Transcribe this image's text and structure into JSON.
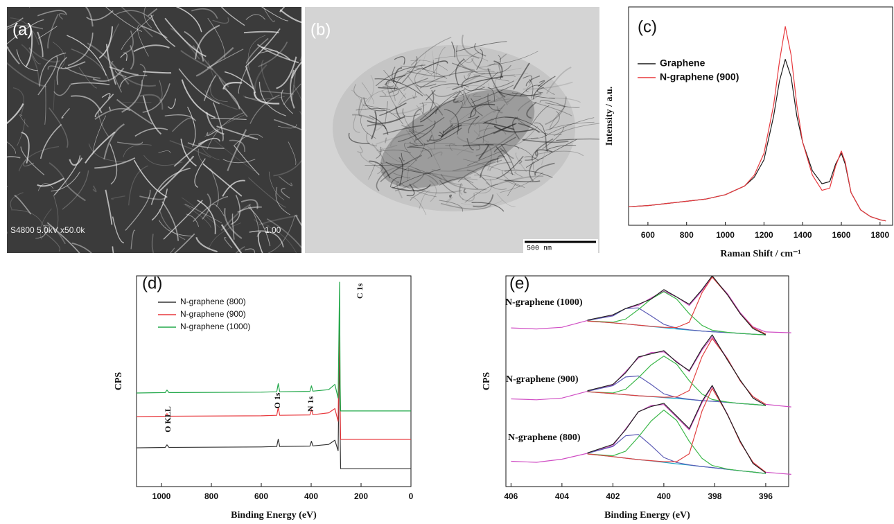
{
  "images": [
    {
      "label": "(a)",
      "caption": "S4800 5.0kV x50.0k",
      "scale": "1.00"
    },
    {
      "label": "(b)",
      "scale": "500 nm"
    }
  ],
  "chart_data": [
    {
      "type": "line",
      "label": "(c)",
      "y_label": "Intensity / a.u.",
      "x_label": "Raman Shift / cm⁻¹",
      "x": [
        500,
        600,
        700,
        800,
        900,
        1000,
        1100,
        1150,
        1200,
        1250,
        1280,
        1310,
        1340,
        1370,
        1400,
        1450,
        1500,
        1540,
        1570,
        1600,
        1620,
        1650,
        1700,
        1750,
        1800,
        1830
      ],
      "series": [
        {
          "name": "Graphene",
          "color": "#1a1a1a",
          "values": [
            8.5,
            9,
            10,
            11,
            12,
            14,
            18,
            22,
            30,
            50,
            66,
            76,
            68,
            50,
            38,
            25,
            19,
            20,
            28,
            33,
            28,
            15,
            7,
            4,
            2.5,
            2
          ]
        },
        {
          "name": "N-graphene (900)",
          "color": "#e8383d",
          "values": [
            8.5,
            9,
            10,
            11,
            12,
            14,
            18,
            23,
            33,
            55,
            75,
            91,
            78,
            55,
            38,
            23,
            16,
            17,
            27,
            34,
            29,
            15,
            7,
            4,
            2.5,
            2
          ]
        }
      ],
      "xlim": [
        500,
        1865
      ],
      "ylim": [
        0,
        100
      ],
      "xticks": [
        600,
        800,
        1000,
        1200,
        1400,
        1600,
        1800
      ]
    },
    {
      "type": "line",
      "label": "(d)",
      "y_label": "CPS",
      "x_label": "Binding Energy (eV)",
      "x": [
        1100,
        985,
        978,
        970,
        600,
        538,
        532,
        526,
        405,
        399,
        393,
        330,
        305,
        292,
        286,
        284,
        282,
        0
      ],
      "series": [
        {
          "name": "N-graphene (800)",
          "color": "#333333",
          "values": [
            18.4,
            18.6,
            19.8,
            18.6,
            18.8,
            19.0,
            22.5,
            19.0,
            19.2,
            21.5,
            19.3,
            20,
            22,
            17,
            70,
            25,
            8.5,
            8.5
          ]
        },
        {
          "name": "N-graphene (900)",
          "color": "#e8383d",
          "values": [
            33.2,
            33.4,
            34.6,
            33.4,
            33.6,
            33.8,
            37.5,
            33.8,
            34,
            36.5,
            34.1,
            35,
            37,
            31,
            85,
            38,
            22.4,
            22.4
          ]
        },
        {
          "name": "N-graphene (1000)",
          "color": "#22a84a",
          "values": [
            44.4,
            44.6,
            45.8,
            44.6,
            44.8,
            45.0,
            48.8,
            45.0,
            45.2,
            47.8,
            45.3,
            46,
            48.5,
            42,
            97,
            49,
            35.9,
            35.9
          ]
        }
      ],
      "annotations": [
        "O KLL",
        "O 1s",
        "N 1s",
        "C 1s"
      ],
      "xlim": [
        1100,
        0
      ],
      "ylim": [
        0,
        100
      ],
      "xticks": [
        1000,
        800,
        600,
        400,
        200,
        0
      ]
    },
    {
      "type": "line",
      "label": "(e)",
      "y_label": "CPS",
      "x_label": "Binding Energy (eV)",
      "x": [
        406,
        405,
        404,
        403,
        402,
        401.5,
        401,
        400.5,
        400,
        399.5,
        399,
        398.5,
        398.1,
        397.5,
        397,
        396.5,
        396,
        395
      ],
      "groups": [
        {
          "label": "N-graphene (1000)",
          "series": [
            {
              "color": "#d04ec4",
              "values": [
                75.3,
                74.8,
                75.6,
                78.8,
                81.2,
                84.5,
                86,
                89.5,
                92.8,
                90,
                86,
                93,
                99.4,
                91.5,
                82.5,
                75.8,
                73.4,
                73.0
              ]
            },
            {
              "color": "#1aa9c9",
              "values": [
                null,
                null,
                null,
                78.6,
                77.7,
                77.2,
                76.6,
                76,
                75.4,
                74.8,
                74.3,
                73.8,
                73.5,
                73.1,
                72.7,
                72.3,
                72,
                null
              ]
            },
            {
              "color": "#5b5bb5",
              "values": [
                null,
                null,
                null,
                78.8,
                81,
                84.5,
                84.8,
                81,
                77,
                75.2,
                74.4,
                73.8,
                73.5,
                73.1,
                72.7,
                72.3,
                72,
                null
              ]
            },
            {
              "color": "#3cb84a",
              "values": [
                null,
                null,
                null,
                78.6,
                78,
                79.5,
                84,
                89,
                92.5,
                89,
                82,
                76.5,
                74.2,
                73.2,
                72.7,
                72.3,
                72,
                null
              ]
            },
            {
              "color": "#e04040",
              "values": [
                null,
                null,
                null,
                78.6,
                77.7,
                77.2,
                76.6,
                76.1,
                75.6,
                75.5,
                78,
                92,
                99.4,
                91,
                82,
                75.5,
                72.4,
                null
              ]
            },
            {
              "color": "#222222",
              "values": [
                null,
                null,
                null,
                79,
                81.5,
                84.5,
                86.5,
                89,
                93.5,
                90,
                86.5,
                93.5,
                100,
                91,
                82,
                75,
                72,
                null
              ]
            }
          ]
        },
        {
          "label": "N-graphene (900)",
          "series": [
            {
              "color": "#d04ec4",
              "values": [
                41.6,
                41.2,
                42,
                45.2,
                48.2,
                54.6,
                61,
                63.6,
                63.9,
                59.4,
                54.6,
                64.8,
                71.1,
                60.7,
                50.1,
                42.7,
                39,
                37.8
              ]
            },
            {
              "color": "#1aa9c9",
              "values": [
                null,
                null,
                null,
                45,
                44.1,
                43.6,
                43.1,
                42.7,
                42.2,
                41.8,
                41.3,
                40.8,
                40.5,
                40,
                39.4,
                39,
                38.5,
                null
              ]
            },
            {
              "color": "#5b5bb5",
              "values": [
                null,
                null,
                null,
                45.2,
                47.9,
                52,
                52.5,
                48.5,
                44,
                42.3,
                41.4,
                40.8,
                40.5,
                40,
                39.4,
                39,
                38.5,
                null
              ]
            },
            {
              "color": "#3cb84a",
              "values": [
                null,
                null,
                null,
                45,
                44.4,
                46.2,
                51.6,
                57.7,
                61.9,
                58.1,
                50.2,
                43.9,
                41.3,
                40.1,
                39.4,
                39,
                38.5,
                null
              ]
            },
            {
              "color": "#e04040",
              "values": [
                null,
                null,
                null,
                45,
                44.1,
                43.6,
                43.1,
                42.8,
                42.4,
                42.6,
                45.6,
                61.7,
                70.3,
                60.6,
                50.1,
                42.7,
                39,
                null
              ]
            },
            {
              "color": "#222222",
              "values": [
                null,
                null,
                null,
                45.5,
                48.5,
                54,
                61.5,
                63,
                64.5,
                59,
                55,
                65.5,
                72,
                60,
                50.5,
                42,
                38.5,
                null
              ]
            }
          ]
        },
        {
          "label": "N-graphene (800)",
          "series": [
            {
              "color": "#d04ec4",
              "values": [
                12,
                11.5,
                13,
                15.8,
                19.4,
                27.4,
                35.4,
                38.5,
                38.9,
                33,
                26.9,
                39.8,
                47.6,
                34.3,
                21,
                11.5,
                6.8,
                5.8
              ]
            },
            {
              "color": "#1aa9c9",
              "values": [
                null,
                null,
                null,
                15.5,
                14.2,
                13.5,
                12.8,
                12.2,
                11.5,
                10.8,
                10.2,
                9.5,
                9,
                8.2,
                7.5,
                6.9,
                6.2,
                null
              ]
            },
            {
              "color": "#5b5bb5",
              "values": [
                null,
                null,
                null,
                15.8,
                19,
                24.1,
                24.7,
                19.5,
                13.8,
                11.4,
                10.3,
                9.5,
                9,
                8.2,
                7.5,
                6.9,
                6.2,
                null
              ]
            },
            {
              "color": "#3cb84a",
              "values": [
                null,
                null,
                null,
                15.5,
                14.6,
                16.8,
                23.5,
                31.1,
                36.3,
                31.4,
                21.4,
                13.4,
                10,
                8.3,
                7.5,
                6.9,
                6.2,
                null
              ]
            },
            {
              "color": "#e04040",
              "values": [
                null,
                null,
                null,
                15.5,
                14.2,
                13.5,
                12.8,
                12.3,
                11.8,
                11.8,
                15.6,
                35.9,
                46.6,
                34.2,
                21,
                11.5,
                6.8,
                null
              ]
            },
            {
              "color": "#222222",
              "values": [
                null,
                null,
                null,
                16,
                20,
                27,
                35.5,
                38,
                39.5,
                33.5,
                27.5,
                40.5,
                48,
                34,
                21.5,
                11,
                6.5,
                null
              ]
            }
          ]
        }
      ],
      "xlim": [
        406.2,
        395.1
      ],
      "ylim": [
        0,
        100
      ],
      "xticks": [
        406,
        404,
        402,
        400,
        398,
        396
      ]
    }
  ]
}
